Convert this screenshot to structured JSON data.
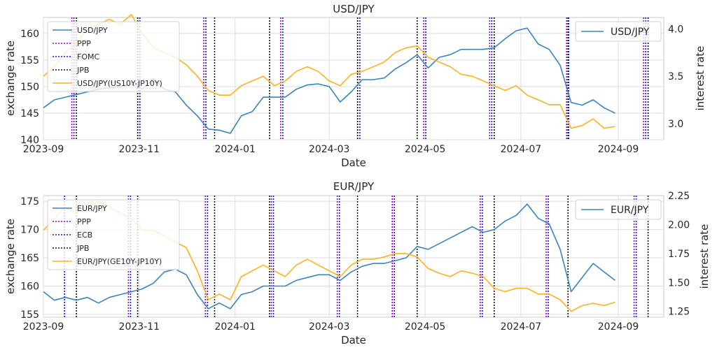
{
  "colors": {
    "rate": "#3c83bd",
    "interest": "#fbb21f",
    "ppp": "#a400d6",
    "fomc": "#1515e6",
    "jpb": "#111111",
    "grid": "#dedede",
    "spine": "#c8c8c8"
  },
  "chart_data": [
    {
      "type": "line",
      "title": "USD/JPY",
      "xlabel": "Date",
      "ylabel": "exchange rate",
      "ylabel_right": "interest rate",
      "x_range": [
        "2023-09-01",
        "2024-09-30"
      ],
      "x_ticks": [
        "2023-09",
        "2023-11",
        "2024-01",
        "2024-03",
        "2024-05",
        "2024-07",
        "2024-09"
      ],
      "ylim": [
        140,
        163
      ],
      "y_ticks": [
        140,
        145,
        150,
        155,
        160
      ],
      "ylim_right": [
        2.83,
        4.12
      ],
      "y_ticks_right": [
        "3.0",
        "3.5",
        "4.0"
      ],
      "grid": true,
      "legend": {
        "location": "upper-left",
        "entries": [
          "USD/JPY",
          "PPP",
          "FOMC",
          "JPB",
          "USD/JPY(US10Y-JP10Y)"
        ]
      },
      "legend_right": {
        "location": "upper-right",
        "entries": [
          "USD/JPY"
        ]
      },
      "series": [
        {
          "name": "USD/JPY",
          "axis": "left",
          "x": [
            "2023-09-01",
            "2023-09-08",
            "2023-09-15",
            "2023-09-22",
            "2023-09-29",
            "2023-10-06",
            "2023-10-13",
            "2023-10-20",
            "2023-10-27",
            "2023-11-03",
            "2023-11-10",
            "2023-11-17",
            "2023-11-24",
            "2023-12-01",
            "2023-12-08",
            "2023-12-15",
            "2023-12-22",
            "2023-12-29",
            "2024-01-05",
            "2024-01-12",
            "2024-01-19",
            "2024-01-26",
            "2024-02-02",
            "2024-02-09",
            "2024-02-16",
            "2024-02-23",
            "2024-03-01",
            "2024-03-08",
            "2024-03-15",
            "2024-03-22",
            "2024-03-29",
            "2024-04-05",
            "2024-04-12",
            "2024-04-19",
            "2024-04-26",
            "2024-05-03",
            "2024-05-10",
            "2024-05-17",
            "2024-05-24",
            "2024-05-31",
            "2024-06-07",
            "2024-06-14",
            "2024-06-21",
            "2024-06-28",
            "2024-07-05",
            "2024-07-12",
            "2024-07-19",
            "2024-07-26",
            "2024-08-02",
            "2024-08-09",
            "2024-08-16",
            "2024-08-23",
            "2024-08-30"
          ],
          "values": [
            146.0,
            147.5,
            148.0,
            148.5,
            149.0,
            149.5,
            149.8,
            150.0,
            150.5,
            149.5,
            151.5,
            149.5,
            149.0,
            146.5,
            144.5,
            142.0,
            141.8,
            141.2,
            144.5,
            145.3,
            148.0,
            148.0,
            148.0,
            149.5,
            150.3,
            150.5,
            150.0,
            147.1,
            149.0,
            151.3,
            151.3,
            151.6,
            153.3,
            154.5,
            156.0,
            153.5,
            155.5,
            156.0,
            157.0,
            157.0,
            157.0,
            157.3,
            159.0,
            160.5,
            161.0,
            158.0,
            157.0,
            154.0,
            147.0,
            146.5,
            147.5,
            146.0,
            145.0
          ]
        },
        {
          "name": "USD/JPY(US10Y-JP10Y)",
          "axis": "right",
          "x": [
            "2023-09-01",
            "2023-09-08",
            "2023-09-15",
            "2023-09-22",
            "2023-09-29",
            "2023-10-06",
            "2023-10-13",
            "2023-10-20",
            "2023-10-27",
            "2023-11-03",
            "2023-11-10",
            "2023-11-17",
            "2023-11-24",
            "2023-12-01",
            "2023-12-08",
            "2023-12-15",
            "2023-12-22",
            "2023-12-29",
            "2024-01-05",
            "2024-01-12",
            "2024-01-19",
            "2024-01-26",
            "2024-02-02",
            "2024-02-09",
            "2024-02-16",
            "2024-02-23",
            "2024-03-01",
            "2024-03-08",
            "2024-03-15",
            "2024-03-22",
            "2024-03-29",
            "2024-04-05",
            "2024-04-12",
            "2024-04-19",
            "2024-04-26",
            "2024-05-03",
            "2024-05-10",
            "2024-05-17",
            "2024-05-24",
            "2024-05-31",
            "2024-06-07",
            "2024-06-14",
            "2024-06-21",
            "2024-06-28",
            "2024-07-05",
            "2024-07-12",
            "2024-07-19",
            "2024-07-26",
            "2024-08-02",
            "2024-08-09",
            "2024-08-16",
            "2024-08-23",
            "2024-08-30"
          ],
          "values": [
            3.5,
            3.6,
            3.75,
            3.85,
            4.0,
            4.05,
            4.1,
            4.05,
            4.15,
            3.95,
            3.8,
            3.75,
            3.7,
            3.62,
            3.5,
            3.35,
            3.3,
            3.3,
            3.4,
            3.45,
            3.5,
            3.4,
            3.45,
            3.55,
            3.6,
            3.55,
            3.45,
            3.4,
            3.52,
            3.55,
            3.6,
            3.65,
            3.75,
            3.8,
            3.82,
            3.7,
            3.65,
            3.6,
            3.52,
            3.5,
            3.45,
            3.4,
            3.35,
            3.4,
            3.3,
            3.25,
            3.2,
            3.2,
            2.95,
            2.98,
            3.05,
            2.95,
            2.97
          ]
        }
      ],
      "vlines": {
        "PPP": [
          "2023-09-20",
          "2023-11-01",
          "2023-12-13",
          "2024-01-31",
          "2024-03-20",
          "2024-05-01",
          "2024-06-12",
          "2024-07-31",
          "2024-09-18"
        ],
        "FOMC": [
          "2023-09-20",
          "2023-11-01",
          "2023-12-13",
          "2024-01-31",
          "2024-03-20",
          "2024-05-01",
          "2024-06-12",
          "2024-07-31",
          "2024-09-18"
        ],
        "JPB": [
          "2023-09-22",
          "2023-10-31",
          "2023-12-19",
          "2024-01-23",
          "2024-03-19",
          "2024-04-26",
          "2024-06-14",
          "2024-07-31",
          "2024-09-20"
        ]
      }
    },
    {
      "type": "line",
      "title": "EUR/JPY",
      "xlabel": "Date",
      "ylabel": "exchange rate",
      "ylabel_right": "interest rate",
      "x_range": [
        "2023-09-01",
        "2024-09-30"
      ],
      "x_ticks": [
        "2023-09",
        "2023-11",
        "2024-01",
        "2024-03",
        "2024-05",
        "2024-07",
        "2024-09"
      ],
      "ylim": [
        154.5,
        176
      ],
      "y_ticks": [
        155,
        160,
        165,
        170,
        175
      ],
      "ylim_right": [
        1.2,
        2.25
      ],
      "y_ticks_right": [
        "1.25",
        "1.50",
        "1.75",
        "2.00",
        "2.25"
      ],
      "grid": true,
      "legend": {
        "location": "upper-left",
        "entries": [
          "EUR/JPY",
          "PPP",
          "ECB",
          "JPB",
          "EUR/JPY(GE10Y-JP10Y)"
        ]
      },
      "legend_right": {
        "location": "upper-right",
        "entries": [
          "EUR/JPY"
        ]
      },
      "series": [
        {
          "name": "EUR/JPY",
          "axis": "left",
          "x": [
            "2023-09-01",
            "2023-09-08",
            "2023-09-15",
            "2023-09-22",
            "2023-09-29",
            "2023-10-06",
            "2023-10-13",
            "2023-10-20",
            "2023-10-27",
            "2023-11-03",
            "2023-11-10",
            "2023-11-17",
            "2023-11-24",
            "2023-12-01",
            "2023-12-08",
            "2023-12-15",
            "2023-12-22",
            "2023-12-29",
            "2024-01-05",
            "2024-01-12",
            "2024-01-19",
            "2024-01-26",
            "2024-02-02",
            "2024-02-09",
            "2024-02-16",
            "2024-02-23",
            "2024-03-01",
            "2024-03-08",
            "2024-03-15",
            "2024-03-22",
            "2024-03-29",
            "2024-04-05",
            "2024-04-12",
            "2024-04-19",
            "2024-04-26",
            "2024-05-03",
            "2024-05-10",
            "2024-05-17",
            "2024-05-24",
            "2024-05-31",
            "2024-06-07",
            "2024-06-14",
            "2024-06-21",
            "2024-06-28",
            "2024-07-05",
            "2024-07-12",
            "2024-07-19",
            "2024-07-26",
            "2024-08-02",
            "2024-08-09",
            "2024-08-16",
            "2024-08-23",
            "2024-08-30"
          ],
          "values": [
            159.0,
            157.5,
            158.0,
            157.5,
            158.0,
            157.0,
            158.0,
            158.5,
            159.0,
            159.5,
            160.5,
            162.5,
            163.0,
            162.0,
            158.5,
            156.0,
            157.0,
            156.0,
            158.5,
            159.0,
            160.0,
            160.0,
            160.0,
            161.0,
            161.5,
            162.0,
            162.0,
            161.0,
            162.5,
            163.5,
            164.0,
            164.0,
            164.5,
            165.0,
            167.0,
            166.5,
            167.5,
            168.5,
            169.5,
            170.5,
            169.5,
            170.0,
            171.5,
            172.5,
            174.5,
            172.0,
            171.0,
            166.5,
            159.0,
            161.5,
            164.0,
            162.5,
            161.0
          ]
        },
        {
          "name": "EUR/JPY(GE10Y-JP10Y)",
          "axis": "right",
          "x": [
            "2023-09-01",
            "2023-09-08",
            "2023-09-15",
            "2023-09-22",
            "2023-09-29",
            "2023-10-06",
            "2023-10-13",
            "2023-10-20",
            "2023-10-27",
            "2023-11-03",
            "2023-11-10",
            "2023-11-17",
            "2023-11-24",
            "2023-12-01",
            "2023-12-08",
            "2023-12-15",
            "2023-12-22",
            "2023-12-29",
            "2024-01-05",
            "2024-01-12",
            "2024-01-19",
            "2024-01-26",
            "2024-02-02",
            "2024-02-09",
            "2024-02-16",
            "2024-02-23",
            "2024-03-01",
            "2024-03-08",
            "2024-03-15",
            "2024-03-22",
            "2024-03-29",
            "2024-04-05",
            "2024-04-12",
            "2024-04-19",
            "2024-04-26",
            "2024-05-03",
            "2024-05-10",
            "2024-05-17",
            "2024-05-24",
            "2024-05-31",
            "2024-06-07",
            "2024-06-14",
            "2024-06-21",
            "2024-06-28",
            "2024-07-05",
            "2024-07-12",
            "2024-07-19",
            "2024-07-26",
            "2024-08-02",
            "2024-08-09",
            "2024-08-16",
            "2024-08-23",
            "2024-08-30"
          ],
          "values": [
            1.95,
            2.05,
            2.15,
            2.1,
            2.15,
            2.2,
            2.15,
            2.1,
            2.05,
            1.95,
            1.95,
            1.9,
            1.85,
            1.8,
            1.6,
            1.35,
            1.4,
            1.35,
            1.55,
            1.6,
            1.65,
            1.6,
            1.55,
            1.65,
            1.7,
            1.65,
            1.6,
            1.55,
            1.65,
            1.7,
            1.7,
            1.72,
            1.75,
            1.75,
            1.72,
            1.62,
            1.58,
            1.55,
            1.6,
            1.58,
            1.55,
            1.45,
            1.42,
            1.45,
            1.45,
            1.4,
            1.4,
            1.35,
            1.25,
            1.3,
            1.32,
            1.3,
            1.33
          ]
        }
      ],
      "vlines": {
        "PPP": [
          "2023-10-26",
          "2023-12-14",
          "2024-01-25",
          "2024-03-07",
          "2024-04-11",
          "2024-06-06",
          "2024-07-18",
          "2024-09-12"
        ],
        "ECB": [
          "2023-09-14",
          "2023-10-26",
          "2023-12-14",
          "2024-01-25",
          "2024-03-07",
          "2024-04-11",
          "2024-06-06",
          "2024-07-18",
          "2024-09-12"
        ],
        "JPB": [
          "2023-09-22",
          "2023-10-31",
          "2023-12-19",
          "2024-01-23",
          "2024-03-19",
          "2024-04-26",
          "2024-06-14",
          "2024-07-31",
          "2024-09-20"
        ]
      }
    }
  ]
}
